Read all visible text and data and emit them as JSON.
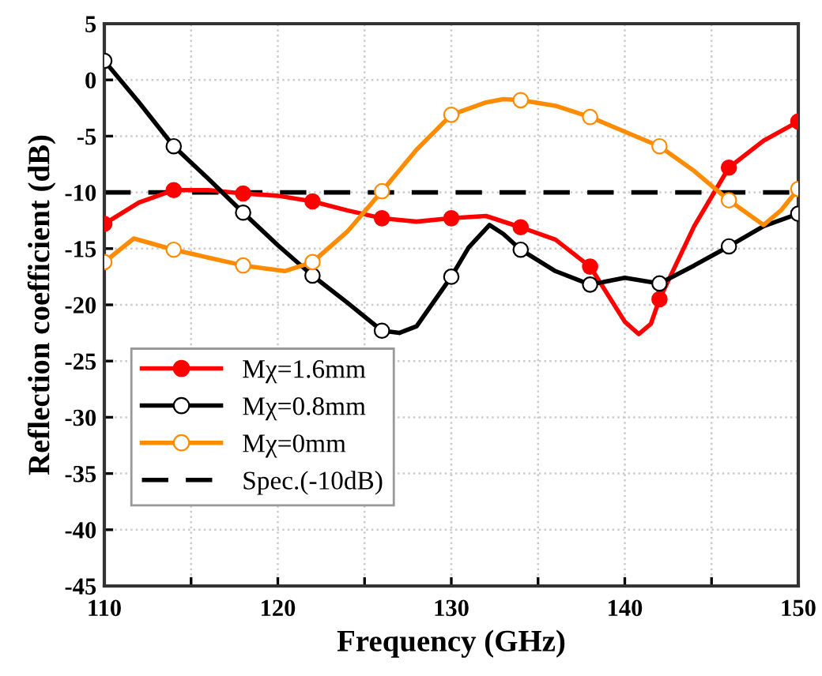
{
  "chart_data": {
    "type": "line",
    "xlabel": "Frequency (GHz)",
    "ylabel": "Reflection coefficient (dB)",
    "xlim": [
      110,
      150
    ],
    "ylim": [
      -45,
      5
    ],
    "xticks": [
      110,
      {
        "value": 115,
        "label": null
      },
      120,
      {
        "value": 125,
        "label": null
      },
      130,
      {
        "value": 135,
        "label": null
      },
      140,
      {
        "value": 145,
        "label": null
      },
      150
    ],
    "yticks": [
      -45,
      -40,
      -35,
      -30,
      -25,
      -20,
      -15,
      -10,
      -5,
      0,
      5
    ],
    "grid": true,
    "legend": "lower left",
    "line_style": "solid",
    "series": [
      {
        "name": "Mχ=1.6mm",
        "color": "#ff0000",
        "x": [
          110,
          112,
          114,
          116,
          118,
          120,
          122,
          124,
          126,
          128,
          130,
          132,
          134,
          136,
          138,
          140,
          140.8,
          141.5,
          142,
          144,
          146,
          148,
          150
        ],
        "values": [
          -12.8,
          -10.9,
          -9.8,
          -9.8,
          -10.1,
          -10.3,
          -10.8,
          -11.6,
          -12.3,
          -12.6,
          -12.3,
          -12.1,
          -13.1,
          -14.2,
          -16.6,
          -21.5,
          -22.6,
          -21.7,
          -19.5,
          -13.0,
          -7.8,
          -5.4,
          -3.7
        ]
      },
      {
        "type": "scatter",
        "marker": "circle",
        "color": "#ff0000",
        "x": [
          110,
          114,
          118,
          122,
          126,
          130,
          134,
          138,
          142,
          146,
          150
        ],
        "values": [
          -12.8,
          -9.8,
          -10.1,
          -10.8,
          -12.3,
          -12.3,
          -13.1,
          -16.6,
          -19.5,
          -7.8,
          -3.7
        ]
      },
      {
        "name": "Mχ=0.8mm",
        "color": "#000000",
        "x": [
          110,
          112,
          114,
          116,
          118,
          120,
          122,
          124,
          126,
          127,
          128,
          130,
          131,
          132.2,
          133,
          134,
          136,
          138,
          140,
          142,
          144,
          146,
          148,
          150
        ],
        "values": [
          1.7,
          -2.0,
          -5.9,
          -8.8,
          -11.8,
          -14.7,
          -17.4,
          -19.8,
          -22.3,
          -22.5,
          -21.9,
          -17.5,
          -14.9,
          -12.9,
          -13.7,
          -15.1,
          -17.0,
          -18.2,
          -17.6,
          -18.1,
          -16.5,
          -14.8,
          -13.0,
          -11.9
        ]
      },
      {
        "type": "scatter",
        "marker": "circle",
        "color": "#ffffff",
        "x": [
          110,
          114,
          118,
          122,
          126,
          130,
          134,
          138,
          142,
          146,
          150
        ],
        "values": [
          1.7,
          -5.9,
          -11.8,
          -17.4,
          -22.3,
          -17.5,
          -15.1,
          -18.2,
          -18.1,
          -14.8,
          -11.9
        ]
      },
      {
        "name": "Mχ=0mm",
        "color": "#ff8c00",
        "x": [
          110,
          111.7,
          114,
          116,
          118,
          120.4,
          122,
          124,
          126,
          128,
          130,
          132,
          133,
          134,
          136,
          138,
          140,
          142,
          144,
          146,
          148,
          149,
          150
        ],
        "values": [
          -16.2,
          -14.1,
          -15.1,
          -15.8,
          -16.5,
          -17.0,
          -16.2,
          -13.5,
          -9.9,
          -6.2,
          -3.1,
          -2.0,
          -1.7,
          -1.8,
          -2.3,
          -3.3,
          -4.6,
          -5.9,
          -8.1,
          -10.7,
          -12.9,
          -11.6,
          -9.7
        ]
      },
      {
        "type": "scatter",
        "marker": "circle",
        "color": "#ffffff",
        "x": [
          110,
          114,
          118,
          122,
          126,
          130,
          134,
          138,
          142,
          146,
          150
        ],
        "values": [
          -16.2,
          -15.1,
          -16.5,
          -16.2,
          -9.9,
          -3.1,
          -1.8,
          -3.3,
          -5.9,
          -10.7,
          -9.7
        ]
      }
    ],
    "ref_lines": [
      {
        "axis": "y",
        "value": -10,
        "label": "Spec.(-10dB)",
        "color": "#000000",
        "line_style": "dashed"
      }
    ]
  }
}
